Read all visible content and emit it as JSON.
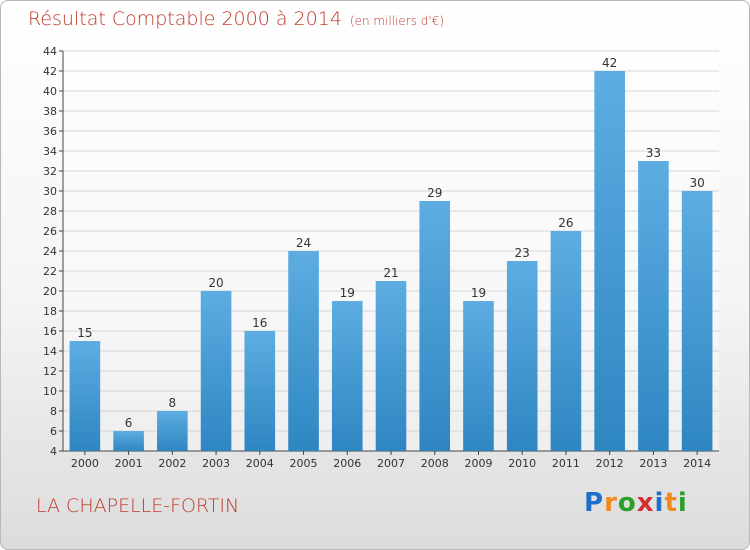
{
  "title": "Résultat Comptable 2000 à 2014",
  "subtitle": "(en milliers d'€)",
  "commune": "LA CHAPELLE-FORTIN",
  "brand": {
    "letters": [
      "P",
      "r",
      "o",
      "x",
      "i",
      "t",
      "i"
    ],
    "colors": [
      "#1e6fc9",
      "#f08a1c",
      "#2aa02a",
      "#d32f2f",
      "#1e6fc9",
      "#f08a1c",
      "#2aa02a"
    ]
  },
  "colors": {
    "bar_light": "#5dade2",
    "bar_dark": "#2e86c1",
    "grid": "#d6d6d6",
    "axis": "#444444"
  },
  "chart_data": {
    "type": "bar",
    "title": "Résultat Comptable 2000 à 2014",
    "xlabel": "",
    "ylabel": "en milliers d'€",
    "ylim": [
      4,
      44
    ],
    "yticks": [
      4,
      6,
      8,
      10,
      12,
      14,
      16,
      18,
      20,
      22,
      24,
      26,
      28,
      30,
      32,
      34,
      36,
      38,
      40,
      42,
      44
    ],
    "grid": true,
    "categories": [
      "2000",
      "2001",
      "2002",
      "2003",
      "2004",
      "2005",
      "2006",
      "2007",
      "2008",
      "2009",
      "2010",
      "2011",
      "2012",
      "2013",
      "2014"
    ],
    "values": [
      15,
      6,
      8,
      20,
      16,
      24,
      19,
      21,
      29,
      19,
      23,
      26,
      42,
      33,
      30
    ]
  }
}
